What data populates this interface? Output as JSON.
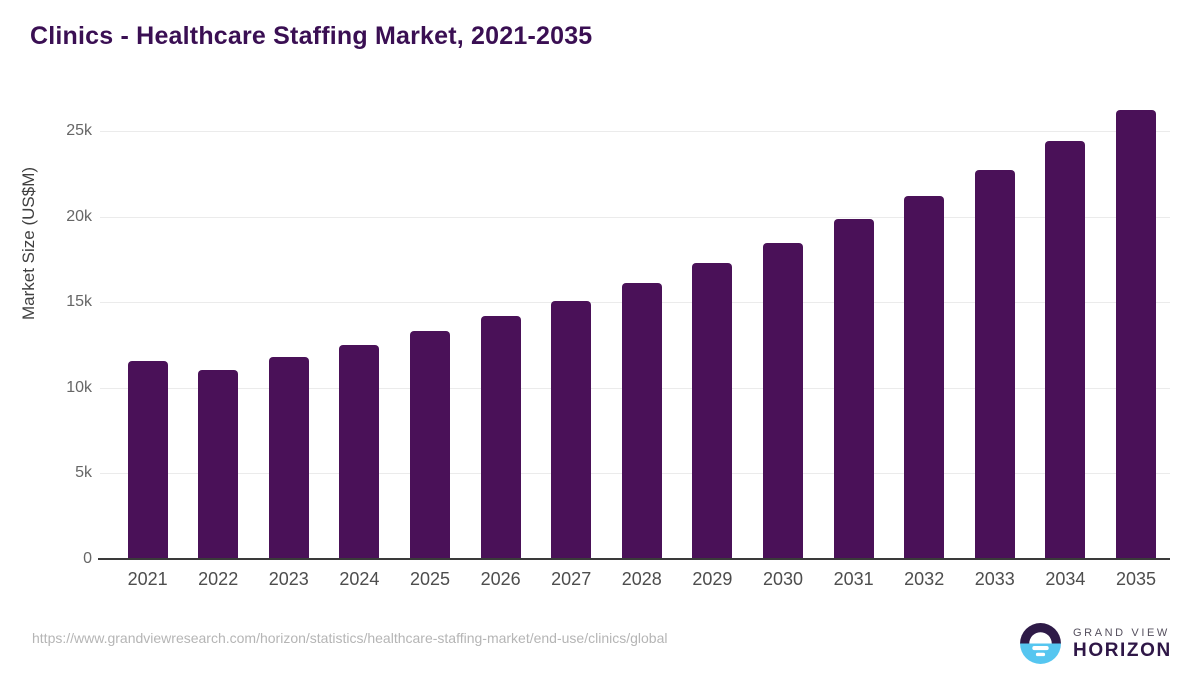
{
  "title": "Clinics - Healthcare Staffing Market, 2021-2035",
  "chart_data": {
    "type": "bar",
    "title": "Clinics - Healthcare Staffing Market, 2021-2035",
    "categories": [
      "2021",
      "2022",
      "2023",
      "2024",
      "2025",
      "2026",
      "2027",
      "2028",
      "2029",
      "2030",
      "2031",
      "2032",
      "2033",
      "2034",
      "2035"
    ],
    "values": [
      11600,
      11050,
      11800,
      12500,
      13300,
      14200,
      15100,
      16150,
      17300,
      18450,
      19850,
      21200,
      22750,
      24450,
      26250
    ],
    "xlabel": "",
    "ylabel": "Market Size (US$M)",
    "ylim": [
      0,
      27000
    ],
    "yticks": [
      {
        "value": 0,
        "label": "0"
      },
      {
        "value": 5000,
        "label": "5k"
      },
      {
        "value": 10000,
        "label": "10k"
      },
      {
        "value": 15000,
        "label": "15k"
      },
      {
        "value": 20000,
        "label": "20k"
      },
      {
        "value": 25000,
        "label": "25k"
      }
    ],
    "grid": true,
    "legend": false,
    "bar_color": "#4a1158"
  },
  "colors": {
    "title_text": "#3a0f53",
    "bar": "#4a1158",
    "gridline": "#ebebeb",
    "axis_line": "#3a3a3a",
    "tick_text": "#666666",
    "logo_dark_purple": "#2e1a47",
    "logo_light_blue": "#56c6f0"
  },
  "footer": {
    "source_url": "https://www.grandviewresearch.com/horizon/statistics/healthcare-staffing-market/end-use/clinics/global",
    "brand_line1": "GRAND VIEW",
    "brand_line2": "HORIZON"
  }
}
